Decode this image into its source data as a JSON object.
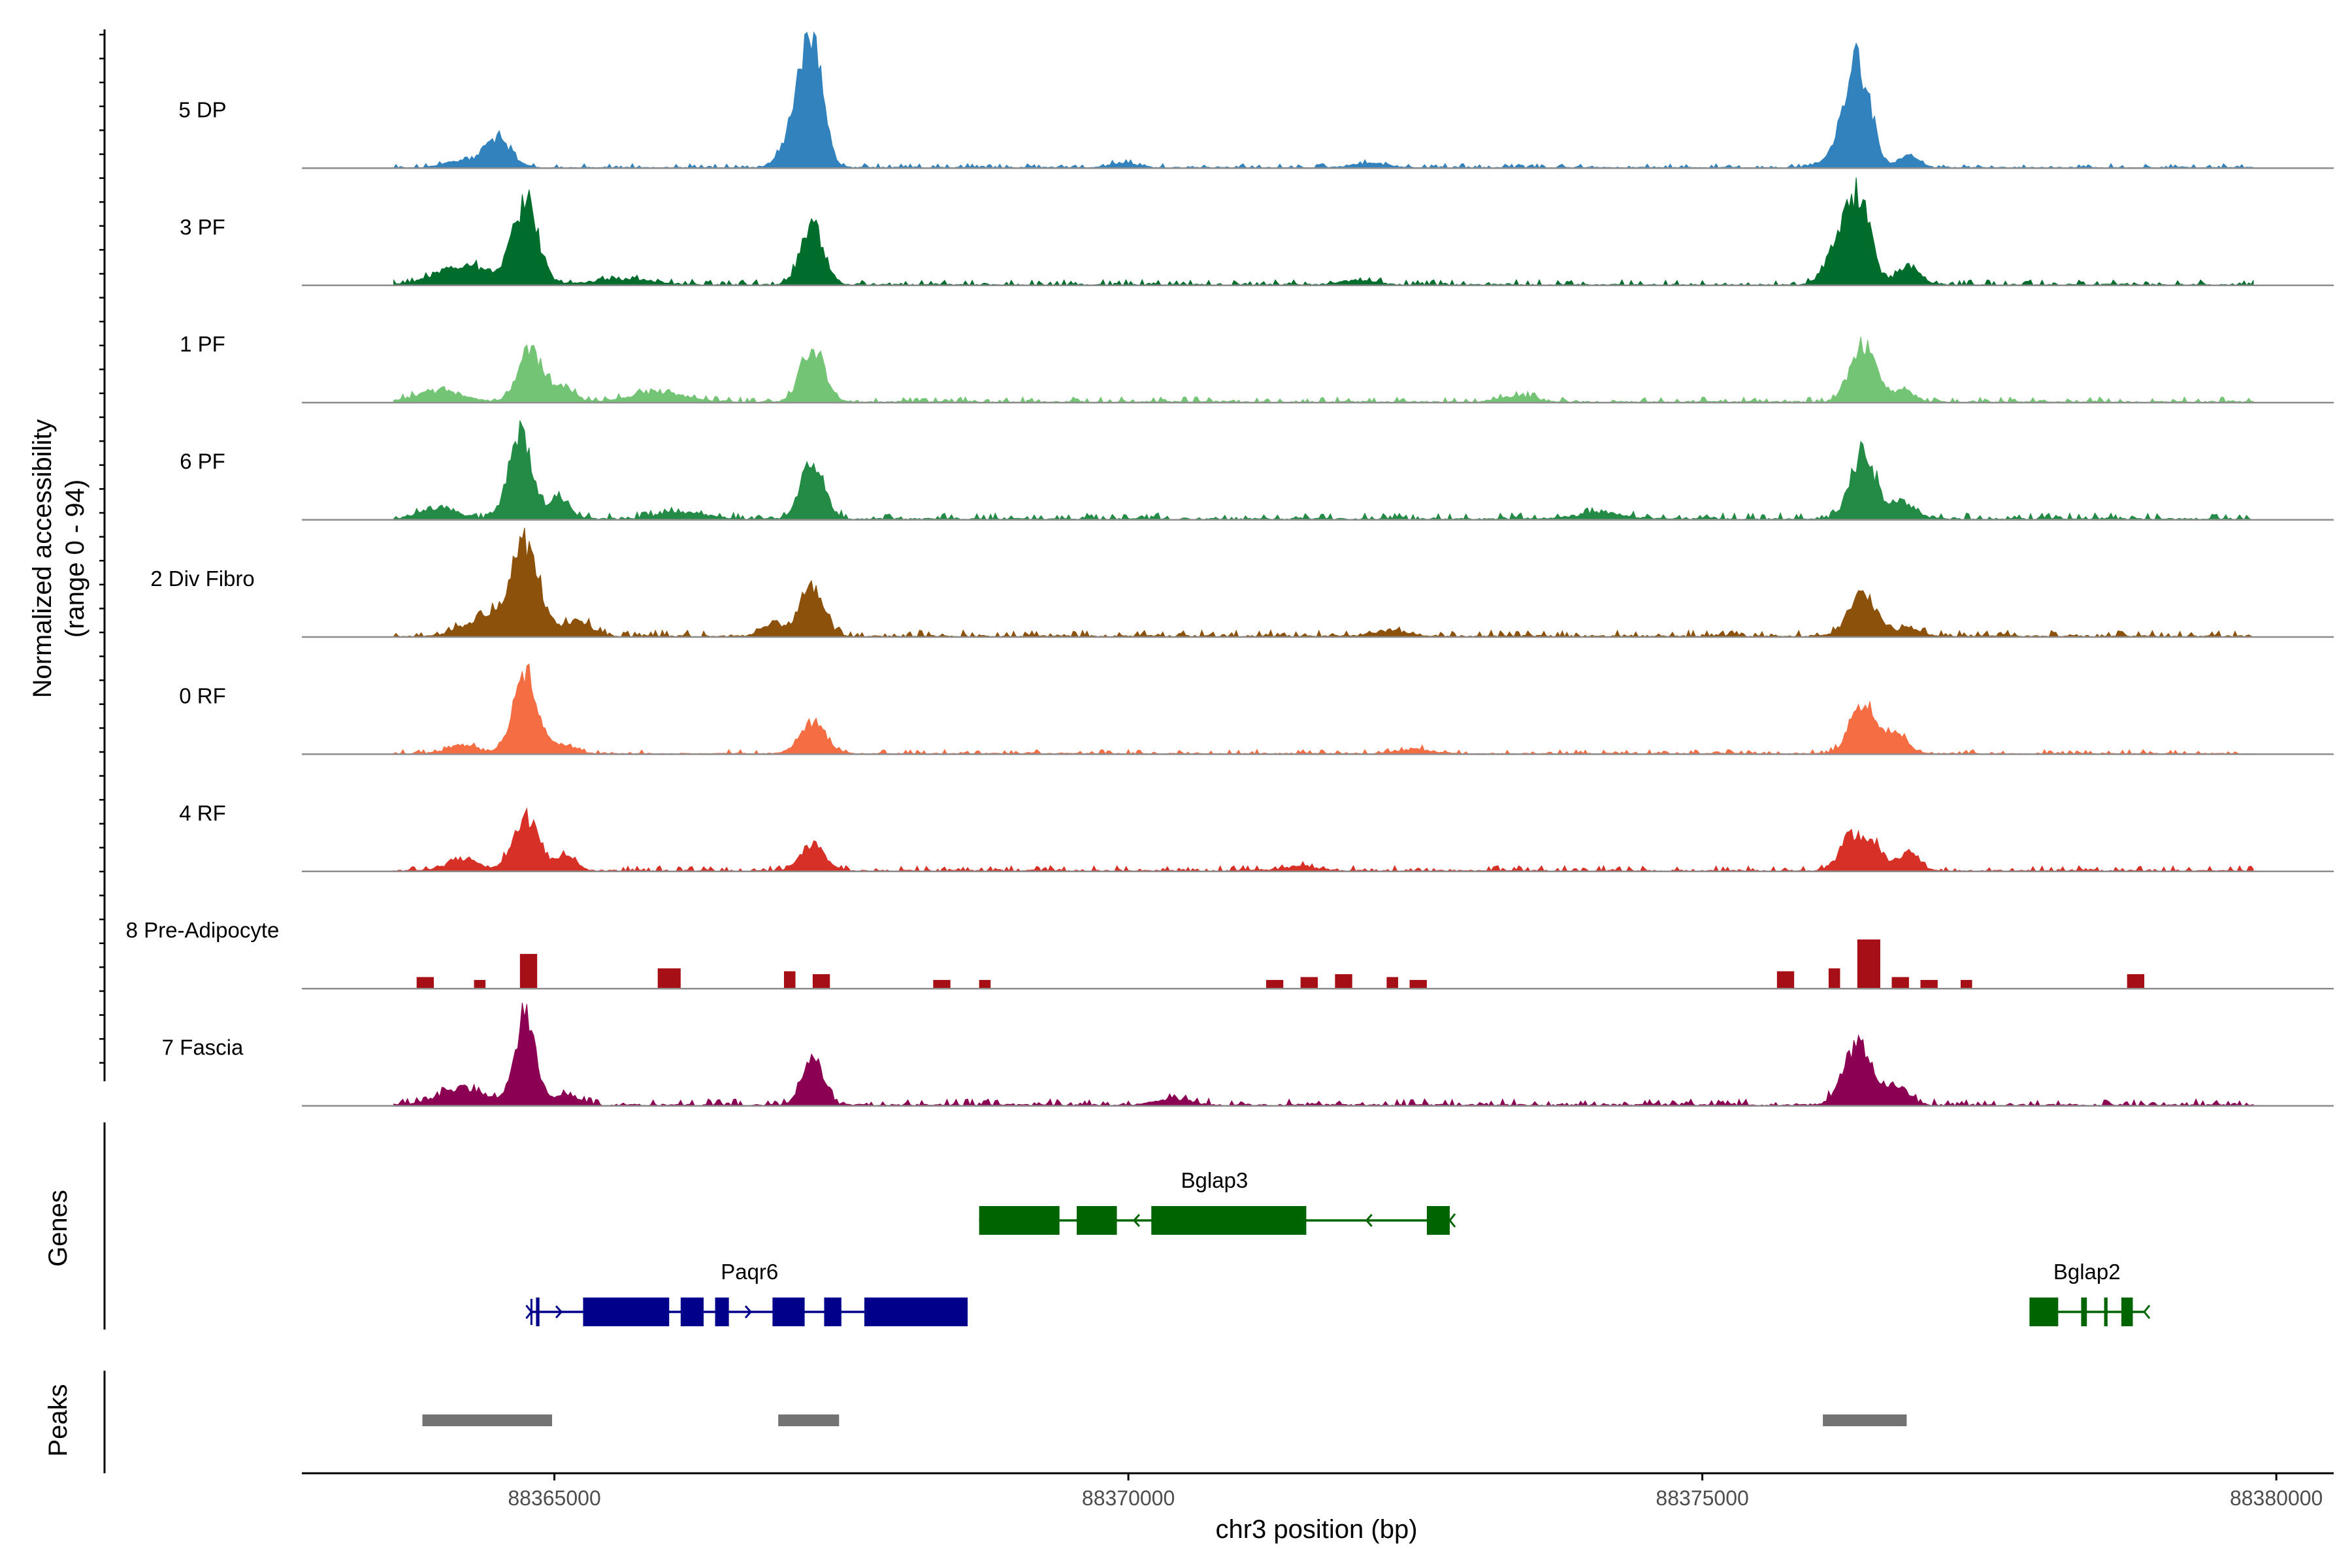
{
  "chart_data": {
    "type": "area",
    "title": "",
    "xlabel": "chr3 position (bp)",
    "ylabel": "Normalized accessibility",
    "ylabel_range": "(range 0 - 94)",
    "ylim": [
      0,
      94
    ],
    "xlim": [
      88362800,
      88380500
    ],
    "x_ticks": [
      88365000,
      88370000,
      88375000,
      88380000
    ],
    "x_tick_labels": [
      "88365000",
      "88370000",
      "88375000",
      "88380000"
    ],
    "track_start": 88363600,
    "track_end": 88379800,
    "tracks": [
      {
        "name": "5 DP",
        "color": "#3182bd",
        "noise": 2.0,
        "peaks": [
          [
            88364150,
            4,
            120
          ],
          [
            88364500,
            20,
            120
          ],
          [
            88367150,
            40,
            120
          ],
          [
            88367250,
            65,
            90
          ],
          [
            88376150,
            6,
            120
          ],
          [
            88376350,
            72,
            110
          ],
          [
            88376800,
            8,
            90
          ],
          [
            88369950,
            3,
            120
          ],
          [
            88372100,
            3,
            150
          ]
        ]
      },
      {
        "name": "3 PF",
        "color": "#006d2c",
        "noise": 2.5,
        "peaks": [
          [
            88364300,
            12,
            180
          ],
          [
            88364750,
            56,
            110
          ],
          [
            88367250,
            40,
            100
          ],
          [
            88364000,
            6,
            150
          ],
          [
            88365600,
            4,
            250
          ],
          [
            88376150,
            18,
            100
          ],
          [
            88376350,
            60,
            110
          ],
          [
            88376800,
            14,
            90
          ],
          [
            88372000,
            3,
            150
          ]
        ]
      },
      {
        "name": "1 PF",
        "color": "#74c476",
        "noise": 2.5,
        "peaks": [
          [
            88364000,
            7,
            200
          ],
          [
            88364800,
            34,
            110
          ],
          [
            88365100,
            10,
            80
          ],
          [
            88367250,
            38,
            100
          ],
          [
            88365900,
            6,
            250
          ],
          [
            88376400,
            40,
            110
          ],
          [
            88376750,
            8,
            90
          ],
          [
            88373400,
            4,
            150
          ]
        ]
      },
      {
        "name": "6 PF",
        "color": "#238b45",
        "noise": 3.0,
        "peaks": [
          [
            88364000,
            8,
            150
          ],
          [
            88364700,
            60,
            100
          ],
          [
            88365050,
            14,
            90
          ],
          [
            88367250,
            40,
            100
          ],
          [
            88366100,
            5,
            200
          ],
          [
            88376400,
            45,
            110
          ],
          [
            88376750,
            12,
            100
          ],
          [
            88374100,
            4,
            200
          ]
        ]
      },
      {
        "name": "2 Div Fibro",
        "color": "#8c510a",
        "noise": 3.0,
        "peaks": [
          [
            88364400,
            14,
            180
          ],
          [
            88364750,
            64,
            120
          ],
          [
            88365200,
            10,
            120
          ],
          [
            88367250,
            35,
            100
          ],
          [
            88366900,
            8,
            100
          ],
          [
            88376400,
            28,
            120
          ],
          [
            88376800,
            6,
            90
          ],
          [
            88372300,
            4,
            150
          ]
        ]
      },
      {
        "name": "0 RF",
        "color": "#f46d43",
        "noise": 2.0,
        "peaks": [
          [
            88364200,
            6,
            130
          ],
          [
            88364750,
            54,
            110
          ],
          [
            88365100,
            6,
            100
          ],
          [
            88367250,
            22,
            110
          ],
          [
            88376400,
            36,
            110
          ],
          [
            88376700,
            14,
            90
          ],
          [
            88372500,
            3,
            150
          ]
        ]
      },
      {
        "name": "4 RF",
        "color": "#d73027",
        "noise": 2.5,
        "peaks": [
          [
            88364200,
            8,
            140
          ],
          [
            88364750,
            38,
            110
          ],
          [
            88365100,
            10,
            90
          ],
          [
            88367250,
            18,
            100
          ],
          [
            88376300,
            24,
            100
          ],
          [
            88376500,
            16,
            90
          ],
          [
            88376800,
            12,
            90
          ],
          [
            88371500,
            3,
            150
          ]
        ]
      },
      {
        "name": "8 Pre-Adipocyte",
        "color": "#a50f15",
        "noise": 0,
        "blocks": [
          [
            88363800,
            88363950,
            8
          ],
          [
            88364300,
            88364400,
            6
          ],
          [
            88364700,
            88364850,
            24
          ],
          [
            88365900,
            88366100,
            14
          ],
          [
            88367000,
            88367100,
            12
          ],
          [
            88367250,
            88367400,
            10
          ],
          [
            88368300,
            88368450,
            6
          ],
          [
            88368700,
            88368800,
            6
          ],
          [
            88371200,
            88371350,
            6
          ],
          [
            88371500,
            88371650,
            8
          ],
          [
            88371800,
            88371950,
            10
          ],
          [
            88372250,
            88372350,
            8
          ],
          [
            88372450,
            88372600,
            6
          ],
          [
            88375650,
            88375800,
            12
          ],
          [
            88376100,
            88376200,
            14
          ],
          [
            88376350,
            88376550,
            34
          ],
          [
            88376650,
            88376800,
            8
          ],
          [
            88376900,
            88377050,
            6
          ],
          [
            88377250,
            88377350,
            6
          ],
          [
            88378700,
            88378850,
            10
          ]
        ]
      },
      {
        "name": "7 Fascia",
        "color": "#8b0052",
        "noise": 3.0,
        "peaks": [
          [
            88364200,
            12,
            200
          ],
          [
            88364750,
            62,
            90
          ],
          [
            88365100,
            8,
            100
          ],
          [
            88367250,
            32,
            90
          ],
          [
            88376350,
            42,
            120
          ],
          [
            88376700,
            14,
            100
          ],
          [
            88370400,
            4,
            150
          ]
        ]
      }
    ],
    "genes": {
      "label": "Genes",
      "items": [
        {
          "name": "Bglap3",
          "color": "#006400",
          "strand": "-",
          "row": 0,
          "start": 88368700,
          "end": 88372800,
          "exons": [
            [
              88368700,
              88369400
            ],
            [
              88369550,
              88369900
            ],
            [
              88370200,
              88371550
            ],
            [
              88372600,
              88372800
            ]
          ]
        },
        {
          "name": "Paqr6",
          "color": "#00008b",
          "strand": "+",
          "row": 1,
          "start": 88364800,
          "end": 88368600,
          "exons": [
            [
              88364840,
              88364870
            ],
            [
              88365250,
              88366000
            ],
            [
              88366100,
              88366300
            ],
            [
              88366400,
              88366520
            ],
            [
              88366900,
              88367180
            ],
            [
              88367350,
              88367500
            ],
            [
              88367700,
              88368600
            ]
          ]
        },
        {
          "name": "Bglap2",
          "color": "#006400",
          "strand": "-",
          "row": 1,
          "start": 88377850,
          "end": 88378850,
          "exons": [
            [
              88377850,
              88378100
            ],
            [
              88378300,
              88378350
            ],
            [
              88378500,
              88378530
            ],
            [
              88378650,
              88378750
            ]
          ]
        }
      ]
    },
    "peaks_track": {
      "label": "Peaks",
      "color": "#737373",
      "regions": [
        [
          88363850,
          88364980
        ],
        [
          88366950,
          88367480
        ],
        [
          88376050,
          88376780
        ]
      ]
    }
  }
}
